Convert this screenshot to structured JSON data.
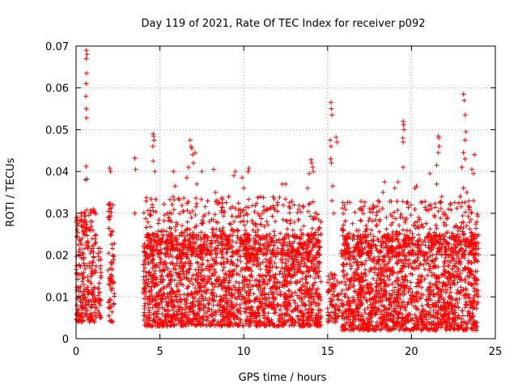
{
  "chart_data": {
    "type": "scatter",
    "title": "Day 119 of 2021, Rate Of TEC Index for receiver p092",
    "xlabel": "GPS time / hours",
    "ylabel": "ROTI / TECUs",
    "xlim": [
      0,
      25
    ],
    "ylim": [
      0,
      0.07
    ],
    "xticks": [
      0,
      5,
      10,
      15,
      20,
      25
    ],
    "yticks": [
      0,
      0.01,
      0.02,
      0.03,
      0.04,
      0.05,
      0.06,
      0.07
    ],
    "xtick_labels": [
      "0",
      "5",
      "10",
      "15",
      "20",
      "25"
    ],
    "ytick_labels": [
      "0",
      "0.01",
      "0.02",
      "0.03",
      "0.04",
      "0.05",
      "0.06",
      "0.07"
    ],
    "grid": true,
    "marker": "+",
    "color": "#ff0000",
    "series": [
      {
        "name": "p092",
        "approx_distribution": [
          {
            "x_range": [
              0.0,
              1.2
            ],
            "y_range": [
              0.004,
              0.031
            ],
            "n": 260
          },
          {
            "x_range": [
              1.3,
              1.5
            ],
            "y_range": [
              0.005,
              0.022
            ],
            "n": 30
          },
          {
            "x_range": [
              1.9,
              2.3
            ],
            "y_range": [
              0.004,
              0.033
            ],
            "n": 70
          },
          {
            "x_range": [
              4.0,
              14.6
            ],
            "y_range": [
              0.003,
              0.025
            ],
            "n": 2000
          },
          {
            "x_range": [
              4.0,
              14.6
            ],
            "y_range": [
              0.02,
              0.034
            ],
            "n": 500
          },
          {
            "x_range": [
              15.0,
              15.7
            ],
            "y_range": [
              0.004,
              0.016
            ],
            "n": 80
          },
          {
            "x_range": [
              15.8,
              24.0
            ],
            "y_range": [
              0.002,
              0.025
            ],
            "n": 1600
          },
          {
            "x_range": [
              15.8,
              24.0
            ],
            "y_range": [
              0.02,
              0.033
            ],
            "n": 400
          }
        ],
        "points": [
          [
            0.6,
            0.069
          ],
          [
            0.65,
            0.068
          ],
          [
            0.6,
            0.067
          ],
          [
            0.62,
            0.0635
          ],
          [
            0.6,
            0.061
          ],
          [
            0.58,
            0.058
          ],
          [
            0.6,
            0.055
          ],
          [
            0.62,
            0.0528
          ],
          [
            0.6,
            0.0412
          ],
          [
            0.55,
            0.038
          ],
          [
            0.65,
            0.0382
          ],
          [
            2.0,
            0.0408
          ],
          [
            2.05,
            0.04
          ],
          [
            3.5,
            0.0432
          ],
          [
            3.55,
            0.0405
          ],
          [
            3.5,
            0.03
          ],
          [
            4.6,
            0.049
          ],
          [
            4.62,
            0.0485
          ],
          [
            4.65,
            0.0475
          ],
          [
            4.58,
            0.046
          ],
          [
            4.6,
            0.0425
          ],
          [
            4.7,
            0.04
          ],
          [
            5.8,
            0.04
          ],
          [
            5.9,
            0.0365
          ],
          [
            6.6,
            0.0385
          ],
          [
            6.8,
            0.0475
          ],
          [
            6.85,
            0.046
          ],
          [
            6.9,
            0.0455
          ],
          [
            6.95,
            0.044
          ],
          [
            7.0,
            0.042
          ],
          [
            7.5,
            0.04
          ],
          [
            7.2,
            0.037
          ],
          [
            8.2,
            0.0405
          ],
          [
            8.3,
            0.035
          ],
          [
            9.5,
            0.04
          ],
          [
            9.4,
            0.039
          ],
          [
            9.9,
            0.0385
          ],
          [
            10.3,
            0.0408
          ],
          [
            10.25,
            0.04
          ],
          [
            10.0,
            0.036
          ],
          [
            11.0,
            0.034
          ],
          [
            12.3,
            0.037
          ],
          [
            12.0,
            0.032
          ],
          [
            13.0,
            0.032
          ],
          [
            13.8,
            0.036
          ],
          [
            14.0,
            0.0428
          ],
          [
            14.05,
            0.042
          ],
          [
            14.1,
            0.041
          ],
          [
            14.15,
            0.04
          ],
          [
            15.2,
            0.0565
          ],
          [
            15.22,
            0.055
          ],
          [
            15.25,
            0.0535
          ],
          [
            15.15,
            0.0475
          ],
          [
            15.2,
            0.046
          ],
          [
            15.18,
            0.043
          ],
          [
            15.22,
            0.042
          ],
          [
            15.5,
            0.0482
          ],
          [
            15.55,
            0.047
          ],
          [
            15.3,
            0.0365
          ],
          [
            15.25,
            0.033
          ],
          [
            15.35,
            0.03
          ],
          [
            17.0,
            0.031
          ],
          [
            18.0,
            0.033
          ],
          [
            18.4,
            0.0375
          ],
          [
            18.3,
            0.035
          ],
          [
            19.2,
            0.0375
          ],
          [
            19.5,
            0.052
          ],
          [
            19.52,
            0.0512
          ],
          [
            19.55,
            0.05
          ],
          [
            19.48,
            0.048
          ],
          [
            19.5,
            0.047
          ],
          [
            19.5,
            0.041
          ],
          [
            19.0,
            0.036
          ],
          [
            20.3,
            0.0365
          ],
          [
            20.2,
            0.036
          ],
          [
            21.1,
            0.0395
          ],
          [
            21.6,
            0.0485
          ],
          [
            21.62,
            0.048
          ],
          [
            21.65,
            0.046
          ],
          [
            21.6,
            0.0445
          ],
          [
            21.5,
            0.0415
          ],
          [
            21.5,
            0.037
          ],
          [
            21.8,
            0.034
          ],
          [
            22.2,
            0.031
          ],
          [
            23.1,
            0.0585
          ],
          [
            23.15,
            0.057
          ],
          [
            23.2,
            0.0535
          ],
          [
            23.25,
            0.0495
          ],
          [
            23.2,
            0.0475
          ],
          [
            23.1,
            0.0445
          ],
          [
            23.2,
            0.043
          ],
          [
            23.0,
            0.041
          ],
          [
            23.1,
            0.036
          ],
          [
            23.3,
            0.035
          ],
          [
            23.6,
            0.0405
          ],
          [
            23.7,
            0.0395
          ],
          [
            23.75,
            0.044
          ],
          [
            23.7,
            0.033
          ],
          [
            22.9,
            0.034
          ],
          [
            12.5,
            0.037
          ],
          [
            7.1,
            0.0445
          ],
          [
            6.7,
            0.041
          ],
          [
            13.9,
            0.0395
          ],
          [
            0.1,
            0.007
          ],
          [
            0.05,
            0.008
          ],
          [
            1.3,
            0.012
          ],
          [
            1.4,
            0.011
          ]
        ]
      }
    ]
  }
}
